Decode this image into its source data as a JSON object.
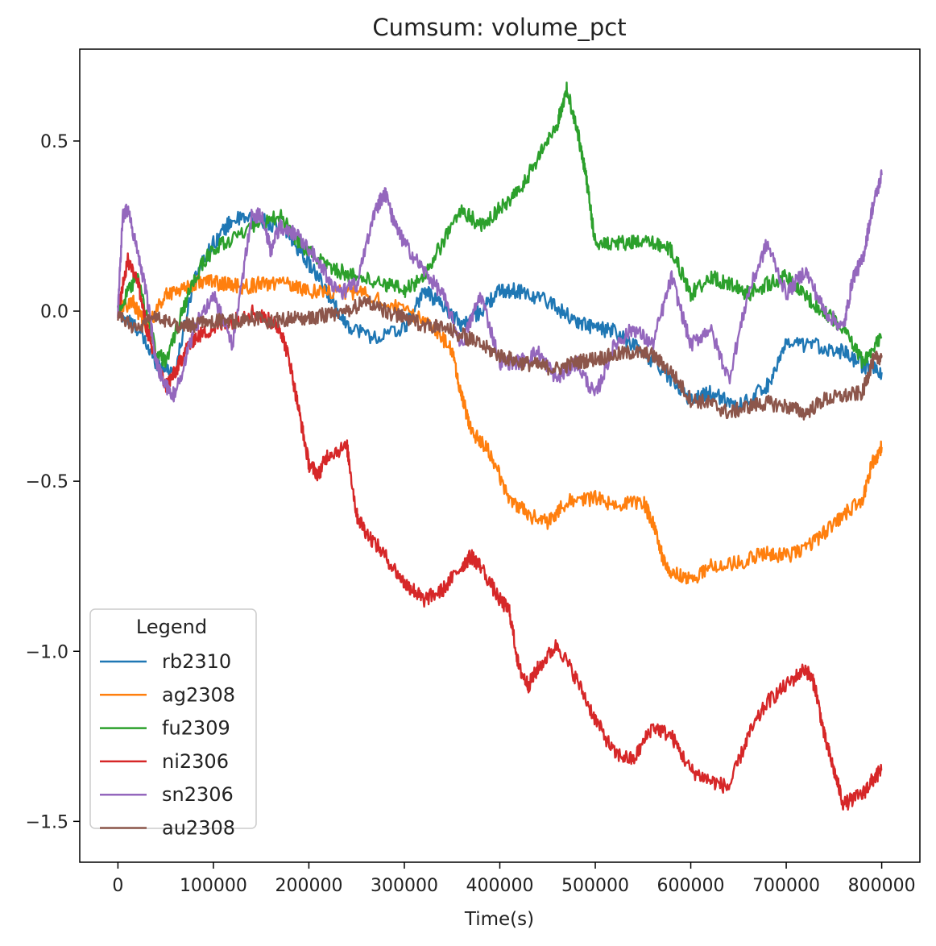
{
  "chart_data": {
    "type": "line",
    "title": "Cumsum: volume_pct",
    "xlabel": "Time(s)",
    "ylabel": "",
    "xlim": [
      -40000,
      840000
    ],
    "ylim": [
      -1.62,
      0.77
    ],
    "xticks": [
      0,
      100000,
      200000,
      300000,
      400000,
      500000,
      600000,
      700000,
      800000
    ],
    "xtick_labels": [
      "0",
      "100000",
      "200000",
      "300000",
      "400000",
      "500000",
      "600000",
      "700000",
      "800000"
    ],
    "yticks": [
      0.5,
      0.0,
      -0.5,
      -1.0,
      -1.5
    ],
    "ytick_labels": [
      "0.5",
      "0.0",
      "−0.5",
      "−1.0",
      "−1.5"
    ],
    "legend": {
      "title": "Legend",
      "position": "lower-left"
    },
    "series": [
      {
        "name": "rb2310",
        "color": "#1f77b4",
        "x": [
          0,
          20000,
          40000,
          60000,
          80000,
          100000,
          120000,
          150000,
          180000,
          200000,
          220000,
          240000,
          270000,
          300000,
          320000,
          340000,
          360000,
          380000,
          400000,
          420000,
          450000,
          480000,
          500000,
          520000,
          550000,
          580000,
          600000,
          620000,
          650000,
          680000,
          700000,
          730000,
          760000,
          780000,
          800000
        ],
        "y": [
          0.0,
          -0.05,
          -0.15,
          -0.18,
          0.1,
          0.2,
          0.27,
          0.27,
          0.22,
          0.14,
          0.05,
          -0.04,
          -0.08,
          -0.05,
          0.06,
          0.02,
          -0.04,
          0.0,
          0.06,
          0.06,
          0.03,
          -0.03,
          -0.05,
          -0.06,
          -0.12,
          -0.2,
          -0.26,
          -0.24,
          -0.28,
          -0.22,
          -0.1,
          -0.1,
          -0.12,
          -0.16,
          -0.18
        ]
      },
      {
        "name": "ag2308",
        "color": "#ff7f0e",
        "x": [
          0,
          15000,
          30000,
          50000,
          70000,
          90000,
          110000,
          130000,
          150000,
          180000,
          200000,
          230000,
          260000,
          300000,
          330000,
          350000,
          360000,
          370000,
          390000,
          410000,
          430000,
          450000,
          470000,
          500000,
          520000,
          550000,
          560000,
          570000,
          580000,
          600000,
          620000,
          650000,
          680000,
          700000,
          720000,
          740000,
          760000,
          780000,
          790000,
          800000
        ],
        "y": [
          0.0,
          0.03,
          -0.05,
          0.05,
          0.07,
          0.09,
          0.08,
          0.07,
          0.08,
          0.08,
          0.06,
          0.06,
          0.05,
          0.0,
          -0.04,
          -0.12,
          -0.25,
          -0.35,
          -0.42,
          -0.55,
          -0.6,
          -0.62,
          -0.56,
          -0.55,
          -0.57,
          -0.56,
          -0.62,
          -0.72,
          -0.77,
          -0.79,
          -0.75,
          -0.74,
          -0.71,
          -0.72,
          -0.7,
          -0.65,
          -0.6,
          -0.55,
          -0.45,
          -0.4
        ]
      },
      {
        "name": "fu2309",
        "color": "#2ca02c",
        "x": [
          0,
          20000,
          40000,
          50000,
          70000,
          90000,
          110000,
          140000,
          170000,
          190000,
          210000,
          230000,
          250000,
          280000,
          300000,
          320000,
          340000,
          360000,
          380000,
          400000,
          420000,
          440000,
          460000,
          470000,
          480000,
          490000,
          500000,
          520000,
          540000,
          560000,
          580000,
          600000,
          620000,
          640000,
          660000,
          680000,
          700000,
          720000,
          740000,
          760000,
          780000,
          800000
        ],
        "y": [
          0.0,
          0.1,
          -0.12,
          -0.15,
          0.02,
          0.15,
          0.2,
          0.24,
          0.28,
          0.2,
          0.15,
          0.12,
          0.1,
          0.08,
          0.06,
          0.1,
          0.2,
          0.3,
          0.25,
          0.3,
          0.35,
          0.45,
          0.55,
          0.65,
          0.55,
          0.4,
          0.2,
          0.2,
          0.2,
          0.2,
          0.18,
          0.05,
          0.1,
          0.08,
          0.05,
          0.08,
          0.1,
          0.04,
          0.0,
          -0.05,
          -0.15,
          -0.08
        ]
      },
      {
        "name": "ni2306",
        "color": "#d62728",
        "x": [
          0,
          10000,
          20000,
          30000,
          40000,
          50000,
          60000,
          70000,
          80000,
          100000,
          120000,
          140000,
          160000,
          170000,
          180000,
          190000,
          200000,
          210000,
          220000,
          240000,
          250000,
          260000,
          280000,
          300000,
          310000,
          320000,
          340000,
          360000,
          370000,
          380000,
          400000,
          410000,
          420000,
          430000,
          440000,
          460000,
          480000,
          500000,
          520000,
          540000,
          560000,
          580000,
          600000,
          620000,
          640000,
          660000,
          680000,
          700000,
          720000,
          730000,
          740000,
          750000,
          760000,
          780000,
          790000,
          800000
        ],
        "y": [
          0.0,
          0.15,
          0.1,
          -0.05,
          -0.15,
          -0.22,
          -0.18,
          -0.12,
          -0.08,
          -0.05,
          -0.03,
          0.0,
          -0.03,
          -0.05,
          -0.15,
          -0.3,
          -0.45,
          -0.48,
          -0.42,
          -0.4,
          -0.6,
          -0.65,
          -0.72,
          -0.8,
          -0.82,
          -0.85,
          -0.82,
          -0.75,
          -0.72,
          -0.75,
          -0.85,
          -0.88,
          -1.05,
          -1.1,
          -1.05,
          -0.98,
          -1.08,
          -1.2,
          -1.3,
          -1.32,
          -1.22,
          -1.25,
          -1.35,
          -1.38,
          -1.4,
          -1.25,
          -1.15,
          -1.1,
          -1.05,
          -1.1,
          -1.25,
          -1.35,
          -1.45,
          -1.42,
          -1.38,
          -1.35
        ]
      },
      {
        "name": "sn2306",
        "color": "#9467bd",
        "x": [
          0,
          5000,
          10000,
          20000,
          30000,
          40000,
          50000,
          60000,
          80000,
          100000,
          120000,
          140000,
          150000,
          160000,
          170000,
          190000,
          210000,
          230000,
          250000,
          270000,
          280000,
          290000,
          300000,
          320000,
          340000,
          360000,
          380000,
          400000,
          420000,
          440000,
          460000,
          480000,
          500000,
          520000,
          540000,
          560000,
          580000,
          600000,
          620000,
          640000,
          660000,
          680000,
          700000,
          720000,
          740000,
          760000,
          770000,
          780000,
          790000,
          800000
        ],
        "y": [
          0.0,
          0.28,
          0.3,
          0.18,
          0.05,
          -0.15,
          -0.22,
          -0.25,
          -0.05,
          0.05,
          -0.1,
          0.28,
          0.28,
          0.18,
          0.25,
          0.22,
          0.15,
          0.05,
          0.08,
          0.3,
          0.35,
          0.25,
          0.2,
          0.12,
          0.05,
          -0.1,
          0.05,
          -0.15,
          -0.15,
          -0.12,
          -0.2,
          -0.15,
          -0.25,
          -0.1,
          -0.05,
          -0.1,
          0.1,
          -0.1,
          -0.05,
          -0.2,
          0.05,
          0.2,
          0.05,
          0.12,
          0.0,
          -0.05,
          0.1,
          0.15,
          0.3,
          0.4
        ]
      },
      {
        "name": "au2308",
        "color": "#8c564b",
        "x": [
          0,
          20000,
          40000,
          60000,
          80000,
          100000,
          120000,
          140000,
          160000,
          180000,
          200000,
          220000,
          240000,
          260000,
          280000,
          300000,
          320000,
          340000,
          360000,
          380000,
          400000,
          420000,
          440000,
          460000,
          480000,
          500000,
          520000,
          540000,
          560000,
          580000,
          600000,
          620000,
          640000,
          660000,
          680000,
          700000,
          720000,
          740000,
          760000,
          780000,
          790000,
          800000
        ],
        "y": [
          -0.02,
          -0.05,
          -0.02,
          -0.04,
          -0.04,
          -0.03,
          -0.03,
          -0.02,
          -0.03,
          -0.02,
          -0.02,
          -0.01,
          0.0,
          0.03,
          0.0,
          -0.02,
          -0.04,
          -0.05,
          -0.07,
          -0.1,
          -0.13,
          -0.15,
          -0.16,
          -0.17,
          -0.15,
          -0.14,
          -0.13,
          -0.12,
          -0.13,
          -0.18,
          -0.26,
          -0.27,
          -0.3,
          -0.28,
          -0.27,
          -0.28,
          -0.3,
          -0.26,
          -0.25,
          -0.24,
          -0.15,
          -0.13
        ]
      }
    ]
  }
}
